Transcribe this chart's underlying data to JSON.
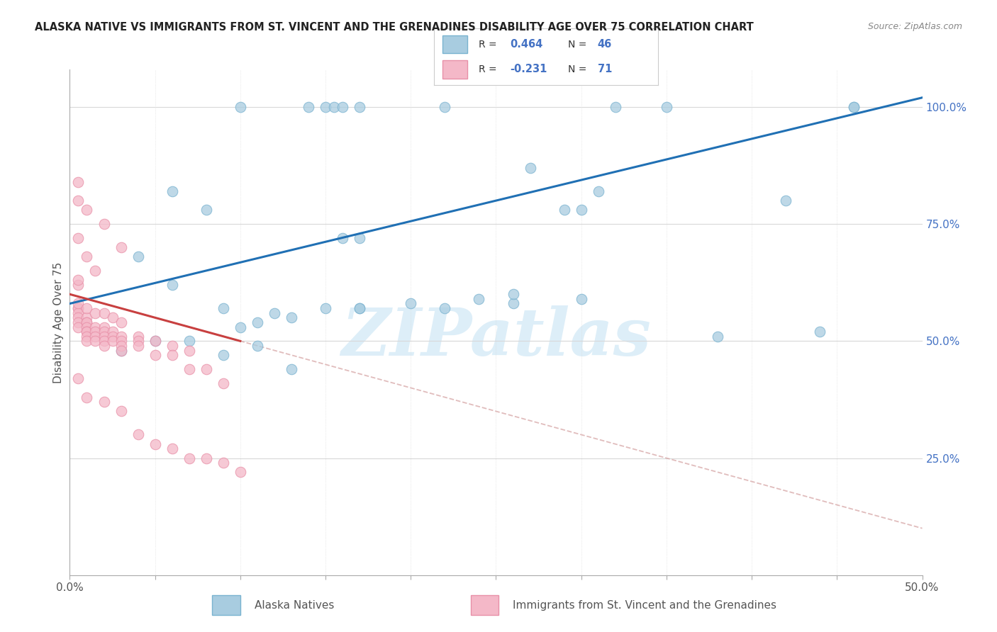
{
  "title": "ALASKA NATIVE VS IMMIGRANTS FROM ST. VINCENT AND THE GRENADINES DISABILITY AGE OVER 75 CORRELATION CHART",
  "source": "Source: ZipAtlas.com",
  "ylabel": "Disability Age Over 75",
  "xlim": [
    0.0,
    0.5
  ],
  "ylim": [
    0.0,
    1.05
  ],
  "xticks": [
    0.0,
    0.05,
    0.1,
    0.15,
    0.2,
    0.25,
    0.3,
    0.35,
    0.4,
    0.45,
    0.5
  ],
  "xticklabels": [
    "0.0%",
    "",
    "",
    "",
    "",
    "",
    "",
    "",
    "",
    "",
    "50.0%"
  ],
  "ytick_vals": [
    0.0,
    0.25,
    0.5,
    0.75,
    1.0
  ],
  "yticklabels_right": [
    "",
    "25.0%",
    "50.0%",
    "75.0%",
    "100.0%"
  ],
  "legend_blue_r": "0.464",
  "legend_blue_n": "46",
  "legend_pink_r": "-0.231",
  "legend_pink_n": "71",
  "blue_scatter_x": [
    0.1,
    0.14,
    0.15,
    0.155,
    0.16,
    0.17,
    0.22,
    0.27,
    0.29,
    0.31,
    0.32,
    0.35,
    0.04,
    0.06,
    0.09,
    0.1,
    0.11,
    0.12,
    0.13,
    0.15,
    0.17,
    0.17,
    0.2,
    0.22,
    0.24,
    0.26,
    0.26,
    0.3,
    0.38,
    0.44,
    0.46,
    0.03,
    0.05,
    0.07,
    0.09,
    0.11,
    0.13,
    0.3,
    0.42,
    0.46,
    0.06,
    0.08,
    0.16,
    0.17
  ],
  "blue_scatter_y": [
    1.0,
    1.0,
    1.0,
    1.0,
    1.0,
    1.0,
    1.0,
    0.87,
    0.78,
    0.82,
    1.0,
    1.0,
    0.68,
    0.62,
    0.57,
    0.53,
    0.54,
    0.56,
    0.55,
    0.57,
    0.72,
    0.57,
    0.58,
    0.57,
    0.59,
    0.58,
    0.6,
    0.59,
    0.51,
    0.52,
    1.0,
    0.48,
    0.5,
    0.5,
    0.47,
    0.49,
    0.44,
    0.78,
    0.8,
    1.0,
    0.82,
    0.78,
    0.72,
    0.57
  ],
  "pink_scatter_x": [
    0.005,
    0.005,
    0.005,
    0.005,
    0.005,
    0.005,
    0.005,
    0.005,
    0.01,
    0.01,
    0.01,
    0.01,
    0.01,
    0.01,
    0.01,
    0.01,
    0.015,
    0.015,
    0.015,
    0.015,
    0.02,
    0.02,
    0.02,
    0.02,
    0.02,
    0.025,
    0.025,
    0.025,
    0.03,
    0.03,
    0.03,
    0.03,
    0.04,
    0.04,
    0.04,
    0.05,
    0.05,
    0.06,
    0.06,
    0.07,
    0.07,
    0.08,
    0.09,
    0.005,
    0.01,
    0.015,
    0.005,
    0.005,
    0.01,
    0.02,
    0.03,
    0.005,
    0.01,
    0.015,
    0.02,
    0.025,
    0.03,
    0.005,
    0.01,
    0.02,
    0.03,
    0.04,
    0.05,
    0.06,
    0.07,
    0.08,
    0.09,
    0.1
  ],
  "pink_scatter_y": [
    0.62,
    0.63,
    0.57,
    0.57,
    0.56,
    0.55,
    0.54,
    0.53,
    0.55,
    0.54,
    0.54,
    0.53,
    0.52,
    0.52,
    0.51,
    0.5,
    0.53,
    0.52,
    0.51,
    0.5,
    0.53,
    0.52,
    0.51,
    0.5,
    0.49,
    0.52,
    0.51,
    0.5,
    0.51,
    0.5,
    0.49,
    0.48,
    0.51,
    0.5,
    0.49,
    0.5,
    0.47,
    0.49,
    0.47,
    0.48,
    0.44,
    0.44,
    0.41,
    0.72,
    0.68,
    0.65,
    0.84,
    0.8,
    0.78,
    0.75,
    0.7,
    0.58,
    0.57,
    0.56,
    0.56,
    0.55,
    0.54,
    0.42,
    0.38,
    0.37,
    0.35,
    0.3,
    0.28,
    0.27,
    0.25,
    0.25,
    0.24,
    0.22
  ],
  "blue_line": {
    "x0": 0.0,
    "x1": 0.5,
    "y0": 0.58,
    "y1": 1.02
  },
  "pink_line_solid": {
    "x0": 0.0,
    "x1": 0.1,
    "y0": 0.6,
    "y1": 0.5
  },
  "pink_line_dash": {
    "x0": 0.0,
    "x1": 0.5,
    "y0": 0.6,
    "y1": 0.1
  },
  "blue_color": "#a8cce0",
  "pink_color": "#f4b8c8",
  "blue_edge_color": "#7ab3d0",
  "pink_edge_color": "#e890a8",
  "blue_line_color": "#2070b4",
  "pink_solid_color": "#c84040",
  "pink_dash_color": "#d4a0a0",
  "grid_color": "#d8d8d8",
  "text_color": "#555555",
  "right_axis_color": "#4472c4",
  "watermark": "ZIPatlas",
  "watermark_color": "#ddeef8",
  "background_color": "#ffffff"
}
